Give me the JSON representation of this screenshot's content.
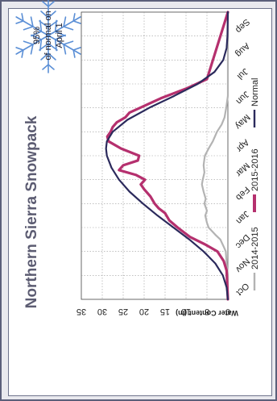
{
  "chart_data": {
    "type": "line",
    "title": "Northern Sierra Snowpack",
    "ylabel": "Water Content (in)",
    "xlabel": "",
    "ylim": [
      0,
      35
    ],
    "yticks": [
      0,
      5,
      10,
      15,
      20,
      25,
      30,
      35
    ],
    "xlim": [
      0,
      12
    ],
    "categories": [
      "Oct",
      "Nov",
      "Dec",
      "Jan",
      "Feb",
      "Mar",
      "Apr",
      "May",
      "Jun",
      "Jul",
      "Aug",
      "Sep"
    ],
    "grid": true,
    "orientation": "rotated-90-clockwise",
    "legend_position": "bottom",
    "series": [
      {
        "name": "2014-2015",
        "color": "#b3b3b3",
        "x": [
          0,
          1.0,
          1.5,
          2.0,
          2.2,
          2.5,
          2.7,
          3.0,
          3.2,
          3.5,
          3.7,
          4.0,
          4.2,
          4.5,
          4.8,
          5.0,
          5.3,
          5.6,
          6.0,
          6.3,
          6.6,
          7.0,
          7.3,
          7.6,
          8.0,
          8.5,
          12
        ],
        "values": [
          0,
          0,
          0.3,
          0.5,
          1.0,
          1.8,
          3.0,
          4.6,
          5.0,
          5.4,
          5.0,
          5.6,
          5.3,
          5.8,
          6.2,
          6.0,
          5.6,
          5.8,
          5.5,
          4.6,
          3.6,
          2.6,
          1.5,
          0.8,
          0.4,
          0,
          0
        ]
      },
      {
        "name": "2015-2016",
        "color": "#b5306e",
        "x": [
          0,
          1.2,
          1.6,
          2.0,
          2.3,
          2.6,
          3.0,
          3.3,
          3.6,
          3.8,
          4.0,
          4.3,
          4.6,
          4.8,
          5.0,
          5.2,
          5.4,
          5.6,
          5.8,
          6.0,
          6.3,
          6.6,
          6.8,
          7.0,
          7.2,
          7.4,
          7.6,
          7.8,
          8.0,
          8.4,
          8.8,
          9.2,
          12
        ],
        "values": [
          0,
          0.3,
          1.0,
          2.5,
          5.5,
          9.0,
          12.0,
          14.0,
          15.0,
          16.5,
          17.5,
          18.5,
          20.0,
          20.8,
          19.8,
          22.0,
          26.0,
          25.0,
          21.5,
          21.2,
          25.5,
          28.5,
          28.8,
          28.0,
          27.5,
          26.5,
          24.5,
          23.5,
          21.0,
          16.0,
          10.0,
          5.0,
          0
        ]
      },
      {
        "name": "Normal",
        "color": "#2b2a5c",
        "x": [
          0,
          0.5,
          1.0,
          1.5,
          2.0,
          2.5,
          3.0,
          3.5,
          4.0,
          4.5,
          5.0,
          5.5,
          6.0,
          6.3,
          6.6,
          7.0,
          7.5,
          8.0,
          8.5,
          9.0,
          9.5,
          10.0,
          10.5,
          11.0,
          12.0
        ],
        "values": [
          0,
          0.3,
          1.2,
          3.0,
          5.8,
          9.2,
          13.0,
          16.8,
          20.3,
          23.5,
          26.0,
          27.8,
          28.9,
          29.1,
          28.9,
          27.5,
          24.0,
          18.8,
          12.8,
          7.2,
          3.2,
          1.1,
          0.3,
          0.1,
          0
        ]
      }
    ]
  },
  "badge": {
    "line1": "95%",
    "line2": "of normal on",
    "line3": "April 1",
    "icon": "snowflake-icon",
    "color": "#5b8fd6"
  },
  "colors": {
    "frame_border": "#5b5f7a",
    "frame_bg": "#e9e9ee",
    "title": "#5c5c72"
  }
}
